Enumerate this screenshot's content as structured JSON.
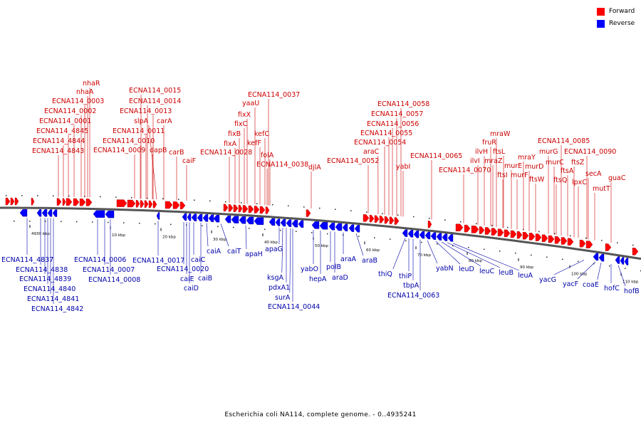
{
  "title": "Escherichia coli NA114, complete genome. - 0..4935241",
  "colors": {
    "forward": "#ff0000",
    "reverse": "#0000ff",
    "forward_label": "#cc0000",
    "reverse_label": "#0000aa",
    "backbone": "#555555"
  },
  "legend": [
    {
      "label": "Forward",
      "color": "#ff0000"
    },
    {
      "label": "Reverse",
      "color": "#0000ff"
    }
  ],
  "scale_ticks": [
    "4930 kbp",
    "10 kbp",
    "20 kbp",
    "30 kbp",
    "40 kbp",
    "50 kbp",
    "60 kbp",
    "70 kbp",
    "80 kbp",
    "90 kbp",
    "100 kbp",
    "110 kbp"
  ],
  "forward_labels": [
    "nhaR",
    "nhaA",
    "ECNA114_0003",
    "ECNA114_0002",
    "ECNA114_0001",
    "ECNA114_4845",
    "ECNA114_4844",
    "ECNA114_4843",
    "ECNA114_0015",
    "ECNA114_0014",
    "ECNA114_0013",
    "slpA",
    "carA",
    "ECNA114_0011",
    "ECNA114_0010",
    "ECNA114_0009",
    "dapB",
    "carB",
    "caiF",
    "ECNA114_0037",
    "yaaU",
    "fixX",
    "fixC",
    "fixB",
    "kefC",
    "fixA",
    "kefF",
    "ECNA114_0028",
    "folA",
    "ECNA114_0038",
    "djlA",
    "ECNA114_0058",
    "ECNA114_0057",
    "ECNA114_0056",
    "ECNA114_0055",
    "ECNA114_0054",
    "araC",
    "ECNA114_0065",
    "ECNA114_0052",
    "yabI",
    "ECNA114_0070",
    "mraW",
    "fruR",
    "ilvH",
    "ftsL",
    "ilvI",
    "mraZ",
    "ftsI",
    "murE",
    "murF",
    "mraY",
    "murD",
    "ftsW",
    "ECNA114_0085",
    "murG",
    "ECNA114_0090",
    "murC",
    "ftsZ",
    "ftsA",
    "ftsQ",
    "lpxC",
    "secA",
    "mutT",
    "guaC"
  ],
  "reverse_labels": [
    "ECNA114_4837",
    "ECNA114_4838",
    "ECNA114_4839",
    "ECNA114_4840",
    "ECNA114_4841",
    "ECNA114_4842",
    "ECNA114_0006",
    "ECNA114_0007",
    "ECNA114_0008",
    "ECNA114_0017",
    "ECNA114_0020",
    "caiE",
    "caiD",
    "caiC",
    "caiB",
    "caiA",
    "caiT",
    "apaH",
    "apaG",
    "ksgA",
    "pdxA1",
    "surA",
    "ECNA114_0044",
    "yabO",
    "hepA",
    "polB",
    "araD",
    "araA",
    "araB",
    "thiQ",
    "thiP",
    "tbpA",
    "ECNA114_0063",
    "yabN",
    "leuD",
    "leuC",
    "leuB",
    "leuA",
    "yacG",
    "yacF",
    "coaE",
    "hofC",
    "hofB"
  ]
}
